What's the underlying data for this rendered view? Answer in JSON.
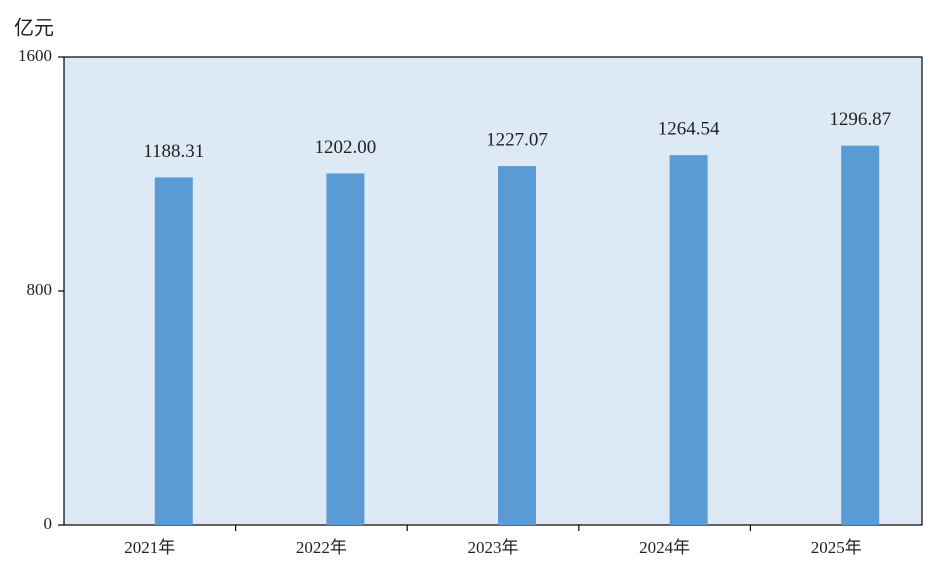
{
  "chart_data": {
    "type": "bar",
    "y_axis_label": "亿元",
    "categories": [
      "2021年",
      "2022年",
      "2023年",
      "2024年",
      "2025年"
    ],
    "values": [
      1188.31,
      1202,
      1227.07,
      1264.54,
      1296.87
    ],
    "value_labels": [
      "1188.31",
      "1202.00",
      "1227.07",
      "1264.54",
      "1296.87"
    ],
    "color": "#5b9bd5",
    "ylim": [
      0,
      1600
    ],
    "yticks": [
      0,
      800,
      1600
    ]
  }
}
